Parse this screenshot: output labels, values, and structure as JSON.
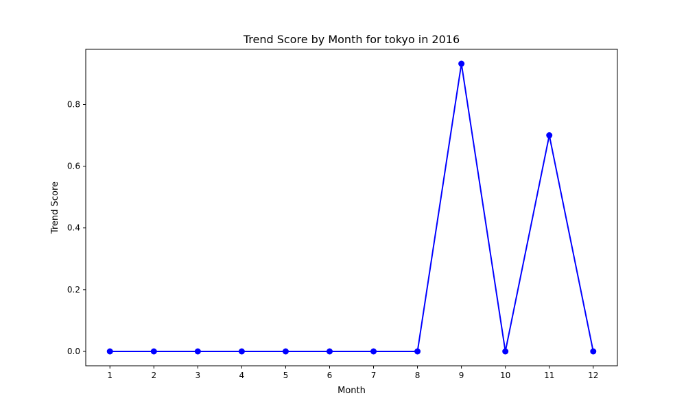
{
  "chart_data": {
    "type": "line",
    "title": "Trend Score by Month for tokyo in 2016",
    "xlabel": "Month",
    "ylabel": "Trend Score",
    "x": [
      1,
      2,
      3,
      4,
      5,
      6,
      7,
      8,
      9,
      10,
      11,
      12
    ],
    "x_tick_labels": [
      "1",
      "2",
      "3",
      "4",
      "5",
      "6",
      "7",
      "8",
      "9",
      "10",
      "11",
      "12"
    ],
    "y_ticks": [
      0.0,
      0.2,
      0.4,
      0.6,
      0.8
    ],
    "y_tick_labels": [
      "0.0",
      "0.2",
      "0.4",
      "0.6",
      "0.8"
    ],
    "xlim": [
      0.45,
      12.55
    ],
    "ylim": [
      -0.0466,
      0.9786
    ],
    "grid": false,
    "series": [
      {
        "values": [
          0,
          0,
          0,
          0,
          0,
          0,
          0,
          0,
          0.932,
          0,
          0.7,
          0
        ],
        "color": "#0000ff",
        "marker": "circle"
      }
    ]
  }
}
